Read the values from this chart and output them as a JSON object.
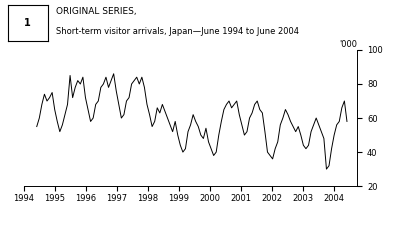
{
  "title_line1": "ORIGINAL SERIES,",
  "title_line2": "Short-term visitor arrivals, Japan—June 1994 to June 2004",
  "ylabel": "'000",
  "ylim": [
    20,
    100
  ],
  "yticks": [
    20,
    40,
    60,
    80,
    100
  ],
  "xlabel_years": [
    "1994",
    "1995",
    "1996",
    "1997",
    "1998",
    "1999",
    "2000",
    "2001",
    "2002",
    "2003",
    "2004"
  ],
  "line_color": "#000000",
  "background_color": "#ffffff",
  "values": [
    55,
    60,
    68,
    74,
    70,
    72,
    75,
    65,
    58,
    52,
    56,
    62,
    68,
    85,
    72,
    78,
    82,
    80,
    84,
    72,
    65,
    58,
    60,
    68,
    70,
    78,
    80,
    84,
    78,
    82,
    86,
    76,
    68,
    60,
    62,
    70,
    72,
    80,
    82,
    84,
    80,
    84,
    78,
    68,
    62,
    55,
    58,
    66,
    63,
    68,
    64,
    60,
    56,
    52,
    58,
    50,
    44,
    40,
    42,
    52,
    56,
    62,
    58,
    55,
    50,
    48,
    54,
    46,
    42,
    38,
    40,
    50,
    58,
    65,
    68,
    70,
    66,
    68,
    70,
    62,
    56,
    50,
    52,
    60,
    63,
    68,
    70,
    65,
    63,
    52,
    40,
    38,
    36,
    42,
    46,
    56,
    60,
    65,
    62,
    58,
    55,
    52,
    55,
    50,
    44,
    42,
    44,
    52,
    56,
    60,
    56,
    52,
    48,
    30,
    32,
    42,
    50,
    56,
    58,
    66,
    70,
    58
  ]
}
